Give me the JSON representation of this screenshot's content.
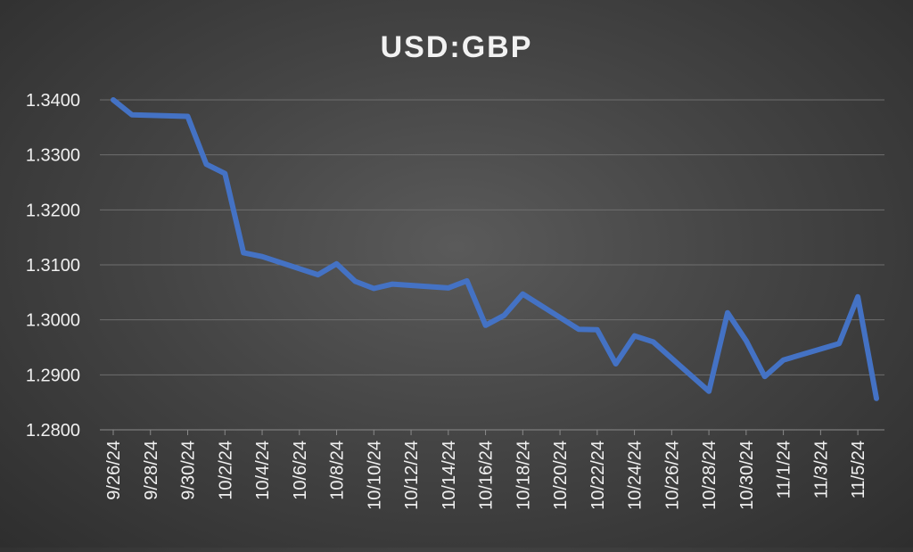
{
  "chart_data": {
    "type": "line",
    "title": "USD:GBP",
    "xlabel": "",
    "ylabel": "",
    "ylim": [
      1.28,
      1.34
    ],
    "y_ticks": [
      "1.2800",
      "1.2900",
      "1.3000",
      "1.3100",
      "1.3200",
      "1.3300",
      "1.3400"
    ],
    "x_tick_labels": [
      "9/26/24",
      "9/28/24",
      "9/30/24",
      "10/2/24",
      "10/4/24",
      "10/6/24",
      "10/8/24",
      "10/10/24",
      "10/12/24",
      "10/14/24",
      "10/16/24",
      "10/18/24",
      "10/20/24",
      "10/22/24",
      "10/24/24",
      "10/26/24",
      "10/28/24",
      "10/30/24",
      "11/1/24",
      "11/3/24",
      "11/5/24"
    ],
    "grid": true,
    "legend": "none",
    "series": [
      {
        "color": "#4472C4",
        "points": [
          {
            "x": "9/26/24",
            "y": 1.34
          },
          {
            "x": "9/27/24",
            "y": 1.3373
          },
          {
            "x": "9/30/24",
            "y": 1.337
          },
          {
            "x": "10/1/24",
            "y": 1.3283
          },
          {
            "x": "10/2/24",
            "y": 1.3266
          },
          {
            "x": "10/3/24",
            "y": 1.3122
          },
          {
            "x": "10/4/24",
            "y": 1.3115
          },
          {
            "x": "10/7/24",
            "y": 1.3082
          },
          {
            "x": "10/8/24",
            "y": 1.3102
          },
          {
            "x": "10/9/24",
            "y": 1.307
          },
          {
            "x": "10/10/24",
            "y": 1.3057
          },
          {
            "x": "10/11/24",
            "y": 1.3065
          },
          {
            "x": "10/14/24",
            "y": 1.3058
          },
          {
            "x": "10/15/24",
            "y": 1.3071
          },
          {
            "x": "10/16/24",
            "y": 1.299
          },
          {
            "x": "10/17/24",
            "y": 1.3008
          },
          {
            "x": "10/18/24",
            "y": 1.3047
          },
          {
            "x": "10/21/24",
            "y": 1.2983
          },
          {
            "x": "10/22/24",
            "y": 1.2982
          },
          {
            "x": "10/23/24",
            "y": 1.292
          },
          {
            "x": "10/24/24",
            "y": 1.2971
          },
          {
            "x": "10/25/24",
            "y": 1.296
          },
          {
            "x": "10/28/24",
            "y": 1.287
          },
          {
            "x": "10/29/24",
            "y": 1.3013
          },
          {
            "x": "10/30/24",
            "y": 1.2962
          },
          {
            "x": "10/31/24",
            "y": 1.2897
          },
          {
            "x": "11/1/24",
            "y": 1.2927
          },
          {
            "x": "11/4/24",
            "y": 1.2957
          },
          {
            "x": "11/5/24",
            "y": 1.3042
          },
          {
            "x": "11/6/24",
            "y": 1.2857
          }
        ]
      }
    ]
  }
}
